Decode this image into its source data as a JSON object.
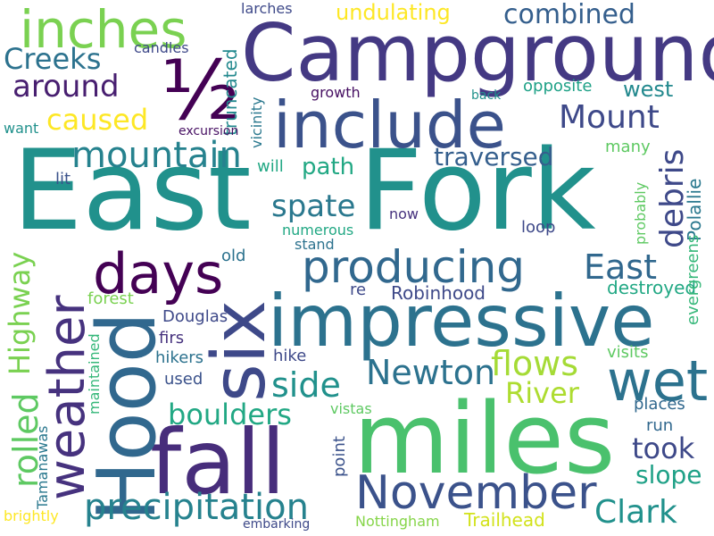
{
  "words": [
    {
      "text": "East",
      "color": "#21918c",
      "vertical": false
    },
    {
      "text": "Fork",
      "color": "#21918c",
      "vertical": false
    },
    {
      "text": "Campground",
      "color": "#443983",
      "vertical": false
    },
    {
      "text": "miles",
      "color": "#4ac16d",
      "vertical": false
    },
    {
      "text": "impressive",
      "color": "#2c728e",
      "vertical": false
    },
    {
      "text": "include",
      "color": "#3b528b",
      "vertical": false
    },
    {
      "text": "fall",
      "color": "#472d7b",
      "vertical": false
    },
    {
      "text": "Hood",
      "color": "#31688e",
      "vertical": true
    },
    {
      "text": "six",
      "color": "#3e4989",
      "vertical": true
    },
    {
      "text": "November",
      "color": "#3b528b",
      "vertical": false
    },
    {
      "text": "weather",
      "color": "#46327e",
      "vertical": true
    },
    {
      "text": "producing",
      "color": "#31688e",
      "vertical": false
    },
    {
      "text": "days",
      "color": "#440154",
      "vertical": false
    },
    {
      "text": "½",
      "color": "#440154",
      "vertical": false
    },
    {
      "text": "wet",
      "color": "#2c728e",
      "vertical": false
    },
    {
      "text": "inches",
      "color": "#7ad151",
      "vertical": false
    },
    {
      "text": "precipitation",
      "color": "#26828e",
      "vertical": false
    },
    {
      "text": "mountain",
      "color": "#26828e",
      "vertical": false
    },
    {
      "text": "Newton",
      "color": "#2c728e",
      "vertical": false
    },
    {
      "text": "Clark",
      "color": "#21918c",
      "vertical": false
    },
    {
      "text": "East",
      "color": "#31688e",
      "vertical": false
    },
    {
      "text": "flows",
      "color": "#a5db36",
      "vertical": false
    },
    {
      "text": "River",
      "color": "#addc30",
      "vertical": false
    },
    {
      "text": "Mount",
      "color": "#3e4989",
      "vertical": false
    },
    {
      "text": "Highway",
      "color": "#7ad151",
      "vertical": true
    },
    {
      "text": "rolled",
      "color": "#5ec962",
      "vertical": true
    },
    {
      "text": "debris",
      "color": "#3e4989",
      "vertical": true
    },
    {
      "text": "boulders",
      "color": "#22a884",
      "vertical": false
    },
    {
      "text": "side",
      "color": "#21918c",
      "vertical": false
    },
    {
      "text": "spate",
      "color": "#2a788e",
      "vertical": false
    },
    {
      "text": "around",
      "color": "#481f70",
      "vertical": false
    },
    {
      "text": "caused",
      "color": "#fde725",
      "vertical": false
    },
    {
      "text": "Creeks",
      "color": "#2c728e",
      "vertical": false
    },
    {
      "text": "combined",
      "color": "#355f8d",
      "vertical": false
    },
    {
      "text": "undulating",
      "color": "#fde725",
      "vertical": false
    },
    {
      "text": "took",
      "color": "#3e4989",
      "vertical": false
    },
    {
      "text": "traversed",
      "color": "#355f8d",
      "vertical": false
    },
    {
      "text": "slope",
      "color": "#1fa187",
      "vertical": false
    },
    {
      "text": "west",
      "color": "#23898e",
      "vertical": false
    },
    {
      "text": "path",
      "color": "#22a884",
      "vertical": false
    },
    {
      "text": "Robinhood",
      "color": "#3e4989",
      "vertical": false
    },
    {
      "text": "destroyed",
      "color": "#22a884",
      "vertical": false
    },
    {
      "text": "Trailhead",
      "color": "#d2e21b",
      "vertical": false
    },
    {
      "text": "Nottingham",
      "color": "#86d549",
      "vertical": false
    },
    {
      "text": "truncated",
      "color": "#23898e",
      "vertical": true
    },
    {
      "text": "Polallie",
      "color": "#2a788e",
      "vertical": true
    },
    {
      "text": "evergreens",
      "color": "#35b779",
      "vertical": true
    },
    {
      "text": "probably",
      "color": "#5ec962",
      "vertical": true
    },
    {
      "text": "vicinity",
      "color": "#2a788e",
      "vertical": true
    },
    {
      "text": "Tamanawas",
      "color": "#2a788e",
      "vertical": true
    },
    {
      "text": "maintained",
      "color": "#35b779",
      "vertical": true
    },
    {
      "text": "point",
      "color": "#3b528b",
      "vertical": true
    },
    {
      "text": "opposite",
      "color": "#1fa187",
      "vertical": false
    },
    {
      "text": "many",
      "color": "#5ec962",
      "vertical": false
    },
    {
      "text": "places",
      "color": "#31688e",
      "vertical": false
    },
    {
      "text": "run",
      "color": "#31688e",
      "vertical": false
    },
    {
      "text": "visits",
      "color": "#5ec962",
      "vertical": false
    },
    {
      "text": "vistas",
      "color": "#5ec962",
      "vertical": false
    },
    {
      "text": "hike",
      "color": "#3e4989",
      "vertical": false
    },
    {
      "text": "hikers",
      "color": "#2c728e",
      "vertical": false
    },
    {
      "text": "used",
      "color": "#3b528b",
      "vertical": false
    },
    {
      "text": "firs",
      "color": "#46327e",
      "vertical": false
    },
    {
      "text": "Douglas",
      "color": "#3e4989",
      "vertical": false
    },
    {
      "text": "forest",
      "color": "#7ad151",
      "vertical": false
    },
    {
      "text": "re",
      "color": "#3e4989",
      "vertical": false
    },
    {
      "text": "old",
      "color": "#2c728e",
      "vertical": false
    },
    {
      "text": "stand",
      "color": "#2c728e",
      "vertical": false
    },
    {
      "text": "numerous",
      "color": "#22a884",
      "vertical": false
    },
    {
      "text": "now",
      "color": "#46327e",
      "vertical": false
    },
    {
      "text": "loop",
      "color": "#3e4989",
      "vertical": false
    },
    {
      "text": "lit",
      "color": "#3b528b",
      "vertical": false
    },
    {
      "text": "will",
      "color": "#22a884",
      "vertical": false
    },
    {
      "text": "growth",
      "color": "#471063",
      "vertical": false
    },
    {
      "text": "back",
      "color": "#21918c",
      "vertical": false
    },
    {
      "text": "excursion",
      "color": "#471063",
      "vertical": false
    },
    {
      "text": "want",
      "color": "#21918c",
      "vertical": false
    },
    {
      "text": "candles",
      "color": "#3e4989",
      "vertical": false
    },
    {
      "text": "larches",
      "color": "#3e4989",
      "vertical": false
    },
    {
      "text": "brightly",
      "color": "#fde725",
      "vertical": false
    },
    {
      "text": "embarking",
      "color": "#3e4989",
      "vertical": false
    }
  ]
}
